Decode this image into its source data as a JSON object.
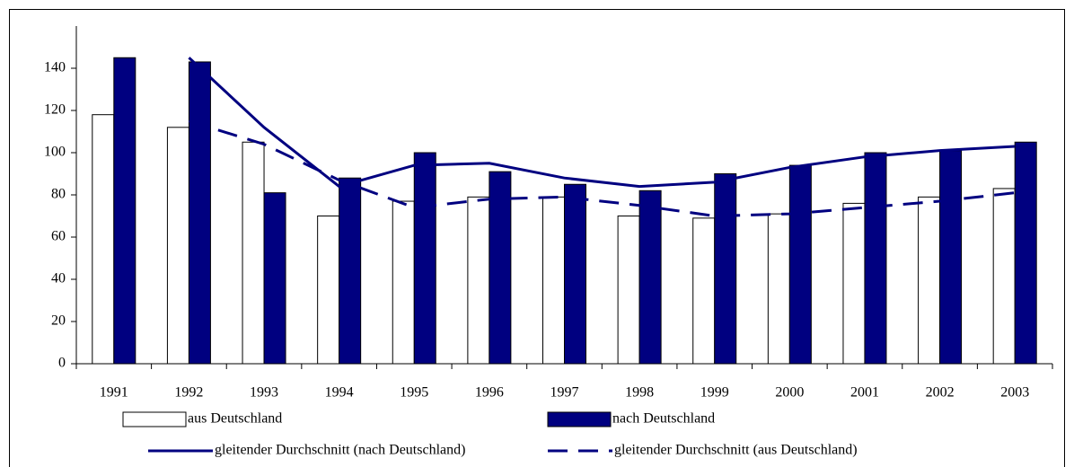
{
  "chart_data": {
    "type": "bar",
    "categories": [
      "1991",
      "1992",
      "1993",
      "1994",
      "1995",
      "1996",
      "1997",
      "1998",
      "1999",
      "2000",
      "2001",
      "2002",
      "2003"
    ],
    "series": [
      {
        "name": "aus Deutschland",
        "type": "bar",
        "color": "#ffffff",
        "values": [
          118,
          112,
          105,
          70,
          77,
          79,
          79,
          70,
          69,
          71,
          76,
          79,
          83
        ]
      },
      {
        "name": "nach Deutschland",
        "type": "bar",
        "color": "#000080",
        "values": [
          145,
          143,
          81,
          88,
          100,
          91,
          85,
          82,
          90,
          94,
          100,
          101,
          105
        ]
      },
      {
        "name": "gleitender Durchschnitt (nach Deutschland)",
        "type": "line",
        "dashed": false,
        "color": "#000080",
        "values": [
          null,
          145,
          112,
          84,
          94,
          95,
          88,
          84,
          86,
          93,
          98,
          101,
          103
        ]
      },
      {
        "name": "gleitender Durchschnitt (aus Deutschland)",
        "type": "line",
        "dashed": true,
        "color": "#000080",
        "values": [
          null,
          115,
          104,
          87,
          74,
          78,
          79,
          75,
          70,
          71,
          74,
          77,
          81
        ]
      }
    ],
    "ylim": [
      0,
      160
    ],
    "yticks": [
      0,
      20,
      40,
      60,
      80,
      100,
      120,
      140
    ],
    "grid": false
  }
}
